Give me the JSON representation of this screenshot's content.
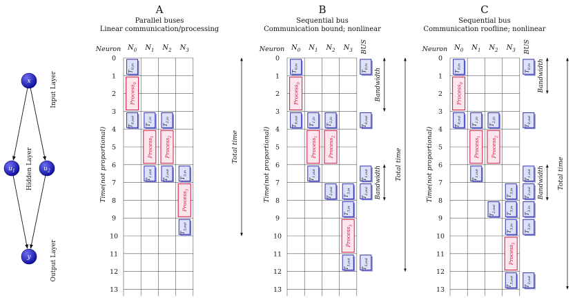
{
  "network": {
    "nodes": [
      {
        "id": "x",
        "label": "x"
      },
      {
        "id": "u1",
        "label": "u",
        "sub": "1"
      },
      {
        "id": "u2",
        "label": "u",
        "sub": "2"
      },
      {
        "id": "y",
        "label": "y"
      }
    ],
    "edges": [
      [
        "x",
        "u1"
      ],
      [
        "x",
        "u2"
      ],
      [
        "u1",
        "y"
      ],
      [
        "u2",
        "y"
      ]
    ],
    "layer_labels": {
      "input": "Input Layer",
      "hidden": "Hidden Layer",
      "output": "Output Layer"
    }
  },
  "common": {
    "neuron_header": "Neuron",
    "neurons": [
      {
        "b": "N",
        "s": "0"
      },
      {
        "b": "N",
        "s": "1"
      },
      {
        "b": "N",
        "s": "2"
      },
      {
        "b": "N",
        "s": "3"
      }
    ],
    "bus_header": "BUS",
    "y_axis_label": "Time(not proportional)",
    "total_time_label": "Total time",
    "bandwidth_label": "Bandwidth",
    "rows": [
      "0",
      "1",
      "2",
      "3",
      "4",
      "5",
      "6",
      "7",
      "8",
      "9",
      "10",
      "11",
      "12",
      "13"
    ]
  },
  "panels": [
    {
      "letter": "A",
      "subtitle": "Parallel buses",
      "description": "Linear communication/processing",
      "has_bus": false,
      "blocks": [
        {
          "col": 0,
          "r0": 0,
          "r1": 1,
          "kind": "T",
          "t": "T",
          "s": "0,in"
        },
        {
          "col": 0,
          "r0": 1,
          "r1": 3,
          "kind": "P",
          "t": "Process",
          "s": "0"
        },
        {
          "col": 0,
          "r0": 3,
          "r1": 4,
          "kind": "T",
          "t": "T",
          "s": "0,out"
        },
        {
          "col": 1,
          "r0": 3,
          "r1": 4,
          "kind": "T",
          "t": "T",
          "s": "1,in"
        },
        {
          "col": 2,
          "r0": 3,
          "r1": 4,
          "kind": "T",
          "t": "T",
          "s": "2,in"
        },
        {
          "col": 1,
          "r0": 4,
          "r1": 6,
          "kind": "P",
          "t": "Process",
          "s": "1"
        },
        {
          "col": 2,
          "r0": 4,
          "r1": 6,
          "kind": "P",
          "t": "Process",
          "s": "2"
        },
        {
          "col": 1,
          "r0": 6,
          "r1": 7,
          "kind": "T",
          "t": "T",
          "s": "1,out"
        },
        {
          "col": 2,
          "r0": 6,
          "r1": 7,
          "kind": "T",
          "t": "T",
          "s": "2,out"
        },
        {
          "col": 3,
          "r0": 6,
          "r1": 7,
          "kind": "T",
          "t": "T",
          "s": "3,in"
        },
        {
          "col": 3,
          "r0": 7,
          "r1": 9,
          "kind": "P",
          "t": "Process",
          "s": "3"
        },
        {
          "col": 3,
          "r0": 9,
          "r1": 10,
          "kind": "T",
          "t": "T",
          "s": "3,out"
        }
      ],
      "total_time": {
        "from": 0,
        "to": 10
      },
      "bandwidth": []
    },
    {
      "letter": "B",
      "subtitle": "Sequential bus",
      "description": "Communication bound; nonlinear",
      "has_bus": true,
      "blocks": [
        {
          "col": 0,
          "r0": 0,
          "r1": 1,
          "kind": "T",
          "t": "T",
          "s": "0,in"
        },
        {
          "col": 4,
          "r0": 0,
          "r1": 1,
          "kind": "T",
          "t": "T",
          "s": "0,in"
        },
        {
          "col": 0,
          "r0": 1,
          "r1": 3,
          "kind": "P",
          "t": "Process",
          "s": "0"
        },
        {
          "col": 0,
          "r0": 3,
          "r1": 4,
          "kind": "T",
          "t": "T",
          "s": "0,out"
        },
        {
          "col": 1,
          "r0": 3,
          "r1": 4,
          "kind": "T",
          "t": "T",
          "s": "1,in"
        },
        {
          "col": 2,
          "r0": 3,
          "r1": 4,
          "kind": "T",
          "t": "T",
          "s": "2,in"
        },
        {
          "col": 4,
          "r0": 3,
          "r1": 4,
          "kind": "T",
          "t": "T",
          "s": "0,out"
        },
        {
          "col": 1,
          "r0": 4,
          "r1": 6,
          "kind": "P",
          "t": "Process",
          "s": "1"
        },
        {
          "col": 2,
          "r0": 4,
          "r1": 6,
          "kind": "P",
          "t": "Process",
          "s": "2"
        },
        {
          "col": 1,
          "r0": 6,
          "r1": 7,
          "kind": "T",
          "t": "T",
          "s": "1,out"
        },
        {
          "col": 4,
          "r0": 6,
          "r1": 7,
          "kind": "T",
          "t": "T",
          "s": "1,out"
        },
        {
          "col": 2,
          "r0": 7,
          "r1": 8,
          "kind": "T",
          "t": "T",
          "s": "2,out"
        },
        {
          "col": 3,
          "r0": 7,
          "r1": 8,
          "kind": "T",
          "t": "T",
          "s": "3,in"
        },
        {
          "col": 4,
          "r0": 7,
          "r1": 8,
          "kind": "T",
          "t": "T",
          "s": "2,out"
        },
        {
          "col": 3,
          "r0": 8,
          "r1": 9,
          "kind": "T",
          "t": "T",
          "s": "3,in"
        },
        {
          "col": 3,
          "r0": 9,
          "r1": 11,
          "kind": "P",
          "t": "Process",
          "s": "3"
        },
        {
          "col": 3,
          "r0": 11,
          "r1": 12,
          "kind": "T",
          "t": "T",
          "s": "3,out"
        },
        {
          "col": 4,
          "r0": 11,
          "r1": 12,
          "kind": "T",
          "t": "T",
          "s": "3,out"
        }
      ],
      "total_time": {
        "from": 0,
        "to": 12
      },
      "bandwidth": [
        {
          "from": 0,
          "to": 3
        },
        {
          "from": 6,
          "to": 8
        }
      ]
    },
    {
      "letter": "C",
      "subtitle": "Sequential bus",
      "description": "Communication roofline; nonlinear",
      "has_bus": true,
      "blocks": [
        {
          "col": 0,
          "r0": 0,
          "r1": 1,
          "kind": "T",
          "t": "T",
          "s": "0,in"
        },
        {
          "col": 4,
          "r0": 0,
          "r1": 1,
          "kind": "T",
          "t": "T",
          "s": "0,in"
        },
        {
          "col": 0,
          "r0": 1,
          "r1": 3,
          "kind": "P",
          "t": "Process",
          "s": "0"
        },
        {
          "col": 0,
          "r0": 3,
          "r1": 4,
          "kind": "T",
          "t": "T",
          "s": "0,out"
        },
        {
          "col": 1,
          "r0": 3,
          "r1": 4,
          "kind": "T",
          "t": "T",
          "s": "1,in"
        },
        {
          "col": 2,
          "r0": 3,
          "r1": 4,
          "kind": "T",
          "t": "T",
          "s": "2,in"
        },
        {
          "col": 4,
          "r0": 3,
          "r1": 4,
          "kind": "T",
          "t": "T",
          "s": "0,out"
        },
        {
          "col": 1,
          "r0": 4,
          "r1": 6,
          "kind": "P",
          "t": "Process",
          "s": "1"
        },
        {
          "col": 2,
          "r0": 4,
          "r1": 6,
          "kind": "P",
          "t": "Process",
          "s": "2"
        },
        {
          "col": 1,
          "r0": 6,
          "r1": 7,
          "kind": "T",
          "t": "T",
          "s": "1,out"
        },
        {
          "col": 4,
          "r0": 6,
          "r1": 7,
          "kind": "T",
          "t": "T",
          "s": "1,out"
        },
        {
          "col": 3,
          "r0": 7,
          "r1": 8,
          "kind": "T",
          "t": "T",
          "s": "3,in"
        },
        {
          "col": 4,
          "r0": 7,
          "r1": 8,
          "kind": "T",
          "t": "T",
          "s": "2,out"
        },
        {
          "col": 2,
          "r0": 8,
          "r1": 9,
          "kind": "T",
          "t": "T",
          "s": "2,out"
        },
        {
          "col": 3,
          "r0": 8,
          "r1": 9,
          "kind": "T",
          "t": "T",
          "s": "3,in"
        },
        {
          "col": 4,
          "r0": 8,
          "r1": 9,
          "kind": "T",
          "t": "T",
          "s": "3,in"
        },
        {
          "col": 3,
          "r0": 9,
          "r1": 10,
          "kind": "T",
          "t": "T",
          "s": "3,in"
        },
        {
          "col": 4,
          "r0": 9,
          "r1": 10,
          "kind": "T",
          "t": "T",
          "s": "3,in"
        },
        {
          "col": 3,
          "r0": 10,
          "r1": 12,
          "kind": "P",
          "t": "Process",
          "s": "3"
        },
        {
          "col": 3,
          "r0": 12,
          "r1": 13,
          "kind": "T",
          "t": "T",
          "s": "3,out"
        },
        {
          "col": 4,
          "r0": 12,
          "r1": 13,
          "kind": "T",
          "t": "T",
          "s": "3,out"
        }
      ],
      "total_time": {
        "from": 0,
        "to": 13
      },
      "bandwidth": [
        {
          "from": 0,
          "to": 2
        },
        {
          "from": 6,
          "to": 8
        }
      ]
    }
  ],
  "colors": {
    "grid": "#555555",
    "t_fill": "#dde1fb",
    "t_stroke": "#1a1aa8",
    "t_shadow": "#8f8fd6",
    "p_fill": "#fde6ee",
    "p_stroke": "#d0103a",
    "node_dark": "#0a0a9a",
    "node_light": "#6d6df2"
  }
}
